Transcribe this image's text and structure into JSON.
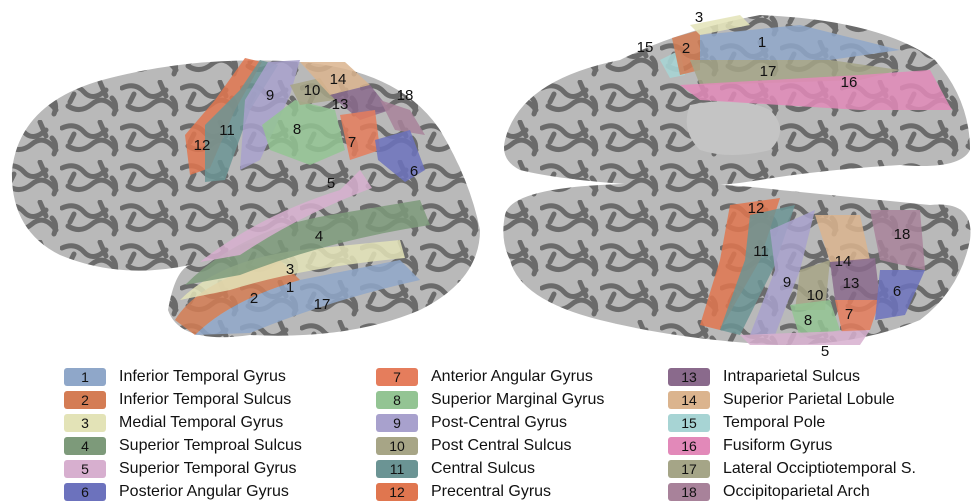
{
  "regions": [
    {
      "id": "1",
      "name": "Inferior Temporal Gyrus",
      "color": "#8fa7c9"
    },
    {
      "id": "2",
      "name": "Inferior Temporal Sulcus",
      "color": "#d47c54"
    },
    {
      "id": "3",
      "name": "Medial Temporal Gyrus",
      "color": "#e3e3b7"
    },
    {
      "id": "4",
      "name": "Superior Temproal Sulcus",
      "color": "#7d9a7a"
    },
    {
      "id": "5",
      "name": "Superior Temporal Gyrus",
      "color": "#d7afcf"
    },
    {
      "id": "6",
      "name": "Posterior Angular Gyrus",
      "color": "#6c72bd"
    },
    {
      "id": "7",
      "name": "Anterior Angular Gyrus",
      "color": "#e57d5c"
    },
    {
      "id": "8",
      "name": "Superior Marginal Gyrus",
      "color": "#93c493"
    },
    {
      "id": "9",
      "name": "Post-Central Gyrus",
      "color": "#a8a1cd"
    },
    {
      "id": "10",
      "name": "Post Central Sulcus",
      "color": "#a7a586"
    },
    {
      "id": "11",
      "name": "Central Sulcus",
      "color": "#6b9494"
    },
    {
      "id": "12",
      "name": "Precentral Gyrus",
      "color": "#e0764f"
    },
    {
      "id": "13",
      "name": "Intraparietal Sulcus",
      "color": "#8a6a8c"
    },
    {
      "id": "14",
      "name": "Superior Parietal Lobule",
      "color": "#dbb48e"
    },
    {
      "id": "15",
      "name": "Temporal Pole",
      "color": "#a7d4d4"
    },
    {
      "id": "16",
      "name": "Fusiform Gyrus",
      "color": "#e289b9"
    },
    {
      "id": "17",
      "name": "Lateral Occiptiotemporal S.",
      "color": "#a5a587"
    },
    {
      "id": "18",
      "name": "Occipitoparietal Arch",
      "color": "#a8829a"
    }
  ],
  "brain_colors": {
    "gyrus": "#bdbdbd",
    "sulcus": "#6e6e6e"
  }
}
